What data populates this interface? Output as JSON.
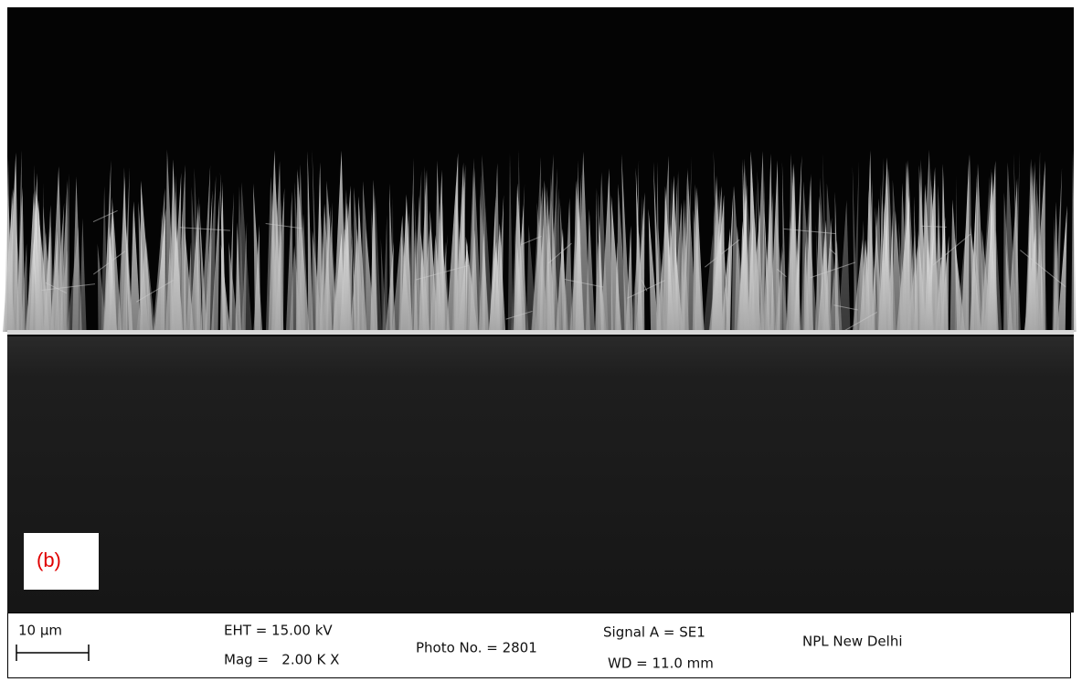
{
  "panel_label": "(b)",
  "info_bar": {
    "scale_bar": "10 µm",
    "eht": "EHT = 15.00 kV",
    "mag": "Mag =   2.00 K X",
    "photo_no": "Photo No. = 2801",
    "signal": "Signal A = SE1",
    "wd": "WD = 11.0 mm",
    "lab": "NPL New Delhi"
  }
}
